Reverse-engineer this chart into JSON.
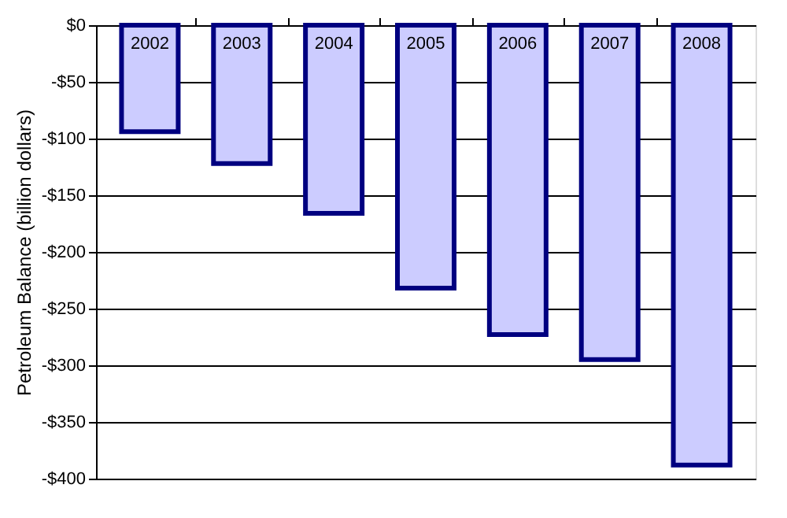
{
  "chart_data": {
    "type": "bar",
    "ylabel": "Petroleum Balance (billion dollars)",
    "categories": [
      "2002",
      "2003",
      "2004",
      "2005",
      "2006",
      "2007",
      "2008"
    ],
    "values": [
      -94,
      -122,
      -166,
      -232,
      -273,
      -295,
      -388
    ],
    "color": "#ccccff",
    "ylim": [
      -400,
      0
    ],
    "yticks": [
      {
        "value": 0,
        "label": "$0"
      },
      {
        "value": -50,
        "label": "-$50"
      },
      {
        "value": -100,
        "label": "-$100"
      },
      {
        "value": -150,
        "label": "-$150"
      },
      {
        "value": -200,
        "label": "-$200"
      },
      {
        "value": -250,
        "label": "-$250"
      },
      {
        "value": -300,
        "label": "-$300"
      },
      {
        "value": -350,
        "label": "-$350"
      },
      {
        "value": -400,
        "label": "-$400"
      }
    ],
    "grid": "y"
  }
}
